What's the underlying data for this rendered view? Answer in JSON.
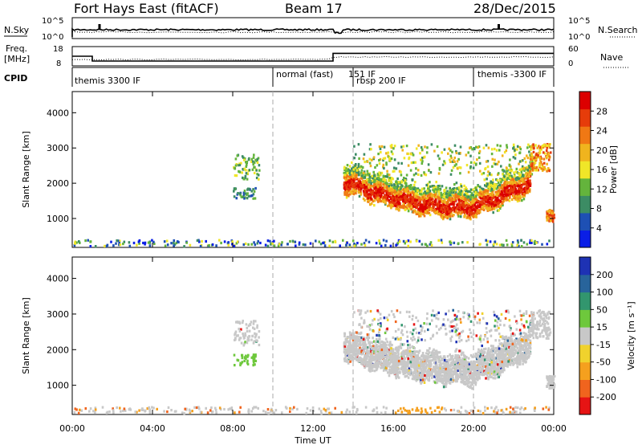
{
  "header": {
    "station": "Fort Hays East (fitACF)",
    "beam": "Beam 17",
    "date": "28/Dec/2015"
  },
  "top_panels": {
    "nsky_label": "N.Sky",
    "nsky_ticks": [
      "10^5",
      "10^0"
    ],
    "nsearch_label": "N.Search",
    "nsearch_ticks": [
      "10^5",
      "10^0"
    ],
    "freq_label_1": "Freq.",
    "freq_label_2": "[MHz]",
    "freq_ticks": [
      "18",
      "8"
    ],
    "nave_label": "Nave",
    "nave_ticks": [
      "60",
      "0"
    ],
    "cpid_label": "CPID",
    "cpid_segments": [
      {
        "label": "themis 3300 IF",
        "start": 0.0,
        "end": 10.0
      },
      {
        "label": "normal (fast)",
        "start": 10.0,
        "end": 14.0
      },
      {
        "label": "151 IF",
        "start": 14.0,
        "end": 14.0
      },
      {
        "label": "rbsp 200 IF",
        "start": 14.0,
        "end": 20.0
      },
      {
        "label": "themis -3300 IF",
        "start": 20.0,
        "end": 24.0
      }
    ],
    "freq_step": [
      {
        "time": 0.0,
        "freq_mhz": 13.0
      },
      {
        "time": 1.0,
        "freq_mhz": 10.5
      },
      {
        "time": 13.0,
        "freq_mhz": 14.5
      },
      {
        "time": 24.0,
        "freq_mhz": 14.5
      }
    ]
  },
  "chart_data": [
    {
      "type": "heatmap",
      "name": "power",
      "ylabel": "Slant Range [km]",
      "xlim": [
        0,
        24
      ],
      "ylim": [
        180,
        4600
      ],
      "x_ticks": [
        0,
        4,
        8,
        12,
        16,
        20,
        24
      ],
      "y_ticks": [
        "1000",
        "2000",
        "3000",
        "4000"
      ],
      "y_tick_values": [
        1000,
        2000,
        3000,
        4000
      ],
      "colorbar_label": "Power [dB]",
      "colorbar_ticks": [
        "4",
        "8",
        "12",
        "16",
        "20",
        "24",
        "28"
      ],
      "colorbar_min": 0,
      "colorbar_max": 32,
      "colorbar_colors": [
        "#0a1ee6",
        "#1e50b4",
        "#3c8c64",
        "#64b43c",
        "#f0e628",
        "#f0b41e",
        "#f07814",
        "#e63c0a",
        "#dc0000"
      ],
      "dashed_times": [
        10,
        14,
        20
      ]
    },
    {
      "type": "heatmap",
      "name": "velocity",
      "ylabel": "Slant Range [km]",
      "xlabel": "Time UT",
      "xlim": [
        0,
        24
      ],
      "ylim": [
        180,
        4600
      ],
      "x_ticks": [
        0,
        4,
        8,
        12,
        16,
        20,
        24
      ],
      "x_tick_labels": [
        "00:00",
        "04:00",
        "08:00",
        "12:00",
        "16:00",
        "20:00",
        "00:00"
      ],
      "y_ticks": [
        "1000",
        "2000",
        "3000",
        "4000"
      ],
      "y_tick_values": [
        1000,
        2000,
        3000,
        4000
      ],
      "colorbar_label": "Velocity [m s⁻¹]",
      "colorbar_ticks": [
        "200",
        "100",
        "50",
        "15",
        "-15",
        "-50",
        "-100",
        "-200"
      ],
      "colorbar_colors": [
        "#1e32b4",
        "#28649b",
        "#32966e",
        "#6ec83c",
        "#c8c8c8",
        "#f0d22d",
        "#f5a01e",
        "#f0641e",
        "#e61414"
      ],
      "dashed_times": [
        10,
        14,
        20
      ]
    }
  ]
}
